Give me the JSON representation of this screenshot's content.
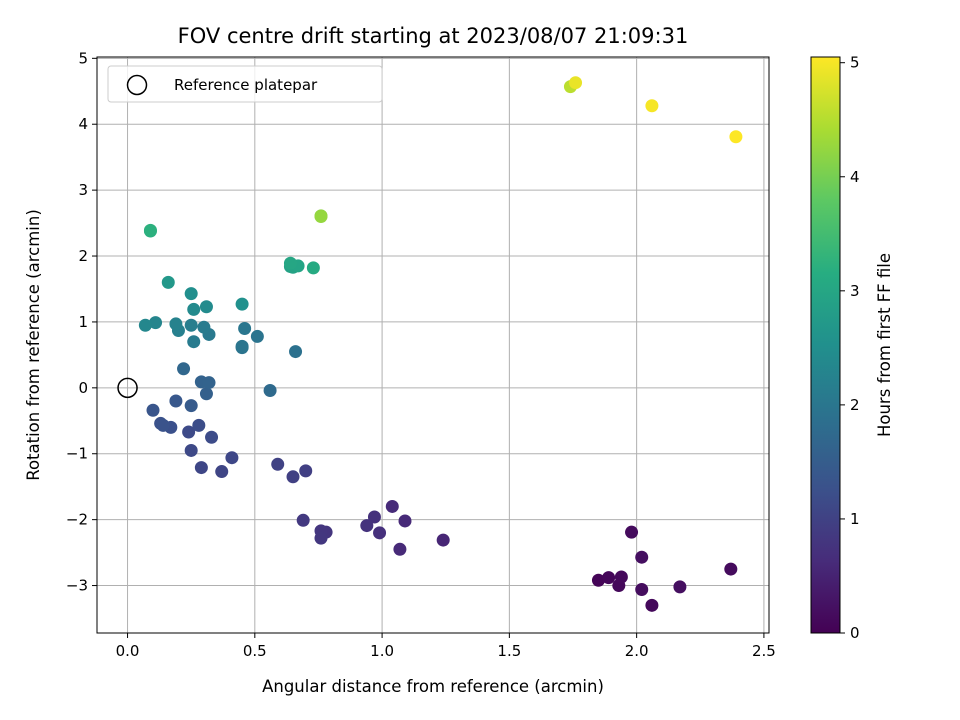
{
  "chart_data": {
    "type": "scatter",
    "title": "FOV centre drift starting at 2023/08/07 21:09:31",
    "xlabel": "Angular distance from reference (arcmin)",
    "ylabel": "Rotation from reference (arcmin)",
    "xlim": [
      -0.12,
      2.52
    ],
    "ylim": [
      -3.72,
      5.02
    ],
    "xticks": [
      0.0,
      0.5,
      1.0,
      1.5,
      2.0,
      2.5
    ],
    "xtick_labels": [
      "0.0",
      "0.5",
      "1.0",
      "1.5",
      "2.0",
      "2.5"
    ],
    "yticks": [
      -3,
      -2,
      -1,
      0,
      1,
      2,
      3,
      4,
      5
    ],
    "ytick_labels": [
      "−3",
      "−2",
      "−1",
      "0",
      "1",
      "2",
      "3",
      "4",
      "5"
    ],
    "grid": true,
    "legend": {
      "placement": "upper-left",
      "entries": [
        "Reference platepar"
      ]
    },
    "reference_point": {
      "x": 0.0,
      "y": 0.0
    },
    "colormap": "viridis",
    "colorbar": {
      "label": "Hours from first FF file",
      "range": [
        0,
        5.05
      ],
      "ticks": [
        0,
        1,
        2,
        3,
        4,
        5
      ],
      "tick_labels": [
        "0",
        "1",
        "2",
        "3",
        "4",
        "5"
      ]
    },
    "points": [
      {
        "x": 1.85,
        "y": -2.92,
        "c": 0.05
      },
      {
        "x": 1.89,
        "y": -2.88,
        "c": 0.08
      },
      {
        "x": 1.93,
        "y": -3.0,
        "c": 0.1
      },
      {
        "x": 1.94,
        "y": -2.87,
        "c": 0.12
      },
      {
        "x": 1.98,
        "y": -2.19,
        "c": 0.15
      },
      {
        "x": 2.02,
        "y": -3.06,
        "c": 0.17
      },
      {
        "x": 2.02,
        "y": -2.57,
        "c": 0.2
      },
      {
        "x": 2.06,
        "y": -3.3,
        "c": 0.1
      },
      {
        "x": 2.17,
        "y": -3.02,
        "c": 0.2
      },
      {
        "x": 2.37,
        "y": -2.75,
        "c": 0.15
      },
      {
        "x": 1.24,
        "y": -2.31,
        "c": 0.55
      },
      {
        "x": 1.09,
        "y": -2.02,
        "c": 0.6
      },
      {
        "x": 1.07,
        "y": -2.45,
        "c": 0.6
      },
      {
        "x": 1.04,
        "y": -1.8,
        "c": 0.62
      },
      {
        "x": 0.99,
        "y": -2.2,
        "c": 0.7
      },
      {
        "x": 0.97,
        "y": -1.96,
        "c": 0.72
      },
      {
        "x": 0.94,
        "y": -2.09,
        "c": 0.75
      },
      {
        "x": 0.78,
        "y": -2.19,
        "c": 0.78
      },
      {
        "x": 0.76,
        "y": -2.17,
        "c": 0.8
      },
      {
        "x": 0.76,
        "y": -2.28,
        "c": 0.82
      },
      {
        "x": 0.69,
        "y": -2.01,
        "c": 0.85
      },
      {
        "x": 0.7,
        "y": -1.26,
        "c": 0.95
      },
      {
        "x": 0.65,
        "y": -1.35,
        "c": 0.97
      },
      {
        "x": 0.59,
        "y": -1.16,
        "c": 1.0
      },
      {
        "x": 0.41,
        "y": -1.06,
        "c": 1.1
      },
      {
        "x": 0.37,
        "y": -1.27,
        "c": 1.05
      },
      {
        "x": 0.29,
        "y": -1.21,
        "c": 1.08
      },
      {
        "x": 0.25,
        "y": -0.95,
        "c": 1.12
      },
      {
        "x": 0.24,
        "y": -0.67,
        "c": 1.15
      },
      {
        "x": 0.33,
        "y": -0.75,
        "c": 1.18
      },
      {
        "x": 0.28,
        "y": -0.57,
        "c": 1.2
      },
      {
        "x": 0.17,
        "y": -0.6,
        "c": 1.25
      },
      {
        "x": 0.13,
        "y": -0.54,
        "c": 1.28
      },
      {
        "x": 0.14,
        "y": -0.57,
        "c": 1.3
      },
      {
        "x": 0.1,
        "y": -0.34,
        "c": 1.35
      },
      {
        "x": 0.19,
        "y": -0.2,
        "c": 1.4
      },
      {
        "x": 0.25,
        "y": -0.27,
        "c": 1.45
      },
      {
        "x": 0.31,
        "y": -0.09,
        "c": 1.55
      },
      {
        "x": 0.29,
        "y": 0.09,
        "c": 1.6
      },
      {
        "x": 0.32,
        "y": 0.08,
        "c": 1.62
      },
      {
        "x": 0.22,
        "y": 0.29,
        "c": 1.7
      },
      {
        "x": 0.56,
        "y": -0.04,
        "c": 1.75
      },
      {
        "x": 0.45,
        "y": 0.61,
        "c": 1.95
      },
      {
        "x": 0.45,
        "y": 0.63,
        "c": 1.97
      },
      {
        "x": 0.51,
        "y": 0.78,
        "c": 1.95
      },
      {
        "x": 0.46,
        "y": 0.9,
        "c": 2.0
      },
      {
        "x": 0.66,
        "y": 0.55,
        "c": 1.9
      },
      {
        "x": 0.32,
        "y": 0.81,
        "c": 2.05
      },
      {
        "x": 0.3,
        "y": 0.92,
        "c": 2.1
      },
      {
        "x": 0.26,
        "y": 0.7,
        "c": 2.1
      },
      {
        "x": 0.25,
        "y": 0.95,
        "c": 2.15
      },
      {
        "x": 0.2,
        "y": 0.87,
        "c": 2.2
      },
      {
        "x": 0.19,
        "y": 0.97,
        "c": 2.25
      },
      {
        "x": 0.11,
        "y": 0.99,
        "c": 2.3
      },
      {
        "x": 0.07,
        "y": 0.95,
        "c": 2.35
      },
      {
        "x": 0.26,
        "y": 1.19,
        "c": 2.4
      },
      {
        "x": 0.31,
        "y": 1.23,
        "c": 2.42
      },
      {
        "x": 0.25,
        "y": 1.43,
        "c": 2.5
      },
      {
        "x": 0.45,
        "y": 1.27,
        "c": 2.55
      },
      {
        "x": 0.16,
        "y": 1.6,
        "c": 2.7
      },
      {
        "x": 0.64,
        "y": 1.84,
        "c": 2.9
      },
      {
        "x": 0.65,
        "y": 1.83,
        "c": 2.92
      },
      {
        "x": 0.67,
        "y": 1.85,
        "c": 2.95
      },
      {
        "x": 0.64,
        "y": 1.89,
        "c": 3.0
      },
      {
        "x": 0.73,
        "y": 1.82,
        "c": 3.1
      },
      {
        "x": 0.09,
        "y": 2.38,
        "c": 3.2
      },
      {
        "x": 0.09,
        "y": 2.39,
        "c": 3.22
      },
      {
        "x": 0.76,
        "y": 2.61,
        "c": 4.2
      },
      {
        "x": 0.76,
        "y": 2.6,
        "c": 4.25
      },
      {
        "x": 1.74,
        "y": 4.57,
        "c": 4.55
      },
      {
        "x": 1.76,
        "y": 4.63,
        "c": 4.9
      },
      {
        "x": 2.06,
        "y": 4.28,
        "c": 5.0
      },
      {
        "x": 2.39,
        "y": 3.81,
        "c": 5.05
      }
    ]
  }
}
